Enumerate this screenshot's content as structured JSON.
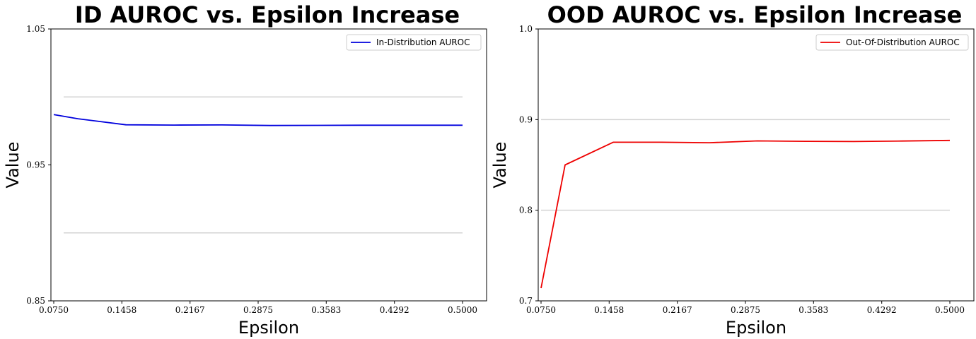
{
  "chart_data": [
    {
      "type": "line",
      "title": "ID AUROC vs. Epsilon Increase",
      "xlabel": "Epsilon",
      "ylabel": "Value",
      "xlim": [
        0.075,
        0.5
      ],
      "ylim": [
        0.85,
        1.05
      ],
      "x_ticks": [
        "0.0750",
        "0.1458",
        "0.2167",
        "0.2875",
        "0.3583",
        "0.4292",
        "0.5000"
      ],
      "y_ticks": [
        "0.85",
        "0.95",
        "1.05"
      ],
      "grid_lines_y": [
        0.9,
        1.0
      ],
      "grid": false,
      "legend": "top-right",
      "series": [
        {
          "name": "In-Distribution AUROC",
          "color": "#0000dd",
          "x": [
            0.075,
            0.1,
            0.15,
            0.2,
            0.25,
            0.3,
            0.35,
            0.4,
            0.45,
            0.5
          ],
          "values": [
            0.987,
            0.984,
            0.9795,
            0.9793,
            0.9794,
            0.979,
            0.9791,
            0.9792,
            0.9792,
            0.9792
          ]
        }
      ]
    },
    {
      "type": "line",
      "title": "OOD AUROC vs. Epsilon Increase",
      "xlabel": "Epsilon",
      "ylabel": "Value",
      "xlim": [
        0.075,
        0.5
      ],
      "ylim": [
        0.7,
        1.0
      ],
      "x_ticks": [
        "0.0750",
        "0.1458",
        "0.2167",
        "0.2875",
        "0.3583",
        "0.4292",
        "0.5000"
      ],
      "y_ticks": [
        "0.7",
        "0.8",
        "0.9",
        "1.0"
      ],
      "grid_lines_y": [
        0.8,
        0.9
      ],
      "grid": false,
      "legend": "top-right",
      "series": [
        {
          "name": "Out-Of-Distribution AUROC",
          "color": "#ee0000",
          "x": [
            0.075,
            0.1,
            0.15,
            0.2,
            0.25,
            0.3,
            0.35,
            0.4,
            0.45,
            0.5
          ],
          "values": [
            0.714,
            0.85,
            0.875,
            0.875,
            0.8745,
            0.8765,
            0.876,
            0.8758,
            0.8763,
            0.877
          ]
        }
      ]
    }
  ]
}
